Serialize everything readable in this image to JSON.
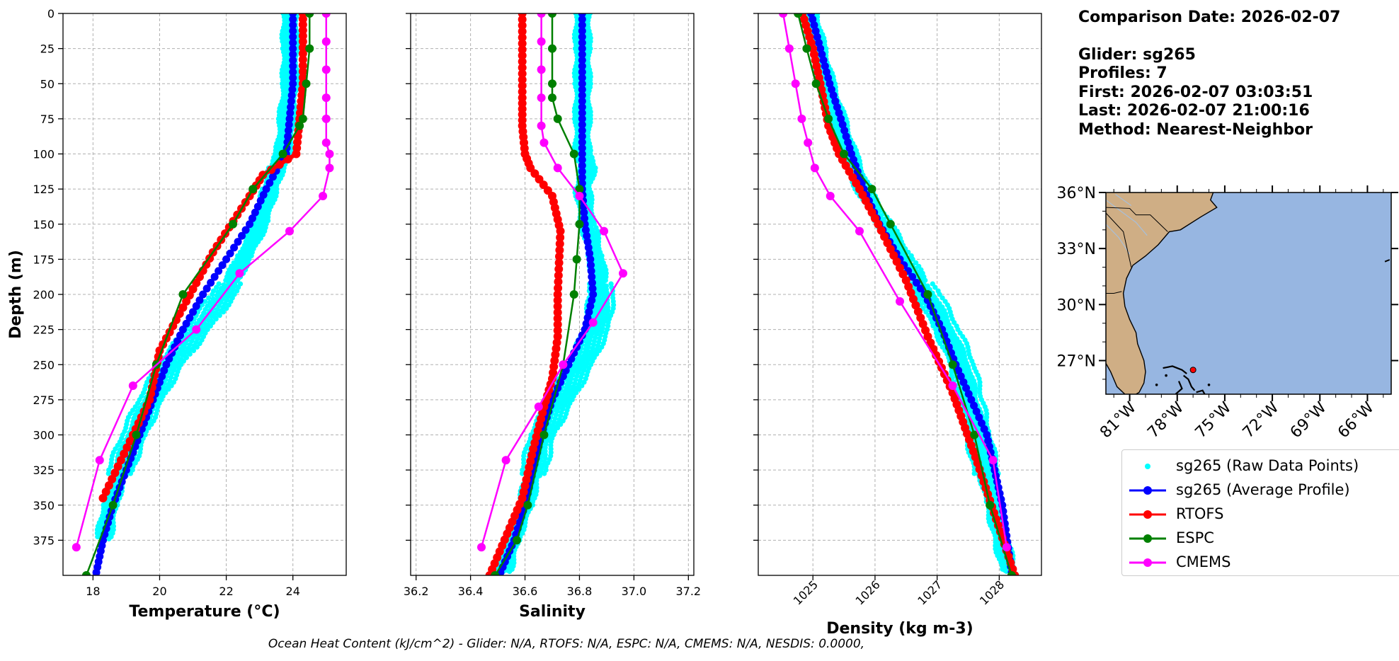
{
  "info": {
    "comparison_date": "Comparison Date: 2026-02-07",
    "glider": "Glider: sg265",
    "profiles": "Profiles: 7",
    "first": "First: 2026-02-07 03:03:51",
    "last": "Last: 2026-02-07 21:00:16",
    "method": "Method: Nearest-Neighbor"
  },
  "footer": "Ocean Heat Content (kJ/cm^2) - Glider: N/A,  RTOFS: N/A,  ESPC: N/A,  CMEMS: N/A,  NESDIS: 0.0000,",
  "legend": [
    {
      "label": "sg265 (Raw Data Points)",
      "color": "#00ffff",
      "style": "dots"
    },
    {
      "label": "sg265 (Average Profile)",
      "color": "#0000ff",
      "style": "line-marker"
    },
    {
      "label": "RTOFS",
      "color": "#ff0000",
      "style": "line-marker"
    },
    {
      "label": "ESPC",
      "color": "#008000",
      "style": "line-marker"
    },
    {
      "label": "CMEMS",
      "color": "#ff00ff",
      "style": "line-marker"
    }
  ],
  "map": {
    "lat_labels": [
      "36°N",
      "33°N",
      "30°N",
      "27°N"
    ],
    "lat_values": [
      36,
      33,
      30,
      27
    ],
    "lon_labels": [
      "81°W",
      "78°W",
      "75°W",
      "72°W",
      "69°W",
      "66°W"
    ],
    "lon_values": [
      -81,
      -78,
      -75,
      -72,
      -69,
      -66
    ],
    "extent": {
      "lon": [
        -82.5,
        -64.5
      ],
      "lat": [
        25.2,
        36.0
      ]
    },
    "ocean_color": "#97b6e1",
    "land_color": "#cfae85",
    "glider_position": {
      "lon": -77.0,
      "lat": 26.5
    }
  },
  "chart_data": [
    {
      "type": "line",
      "xlabel": "Temperature (°C)",
      "ylabel": "Depth (m)",
      "xlim": [
        17.1,
        25.6
      ],
      "ylim": [
        400,
        0
      ],
      "xticks": [
        18,
        20,
        22,
        24
      ],
      "yticks": [
        0,
        25,
        50,
        75,
        100,
        125,
        150,
        175,
        200,
        225,
        250,
        275,
        300,
        325,
        350,
        375
      ],
      "grid": true,
      "series": [
        {
          "name": "sg265 (Raw Data Points)",
          "color": "#00ffff",
          "x": [
            23.9,
            23.9,
            23.9,
            23.8,
            23.7,
            23.5,
            23.3,
            23.0,
            22.5,
            21.9,
            21.1,
            20.3,
            19.7,
            19.2,
            18.8,
            18.5,
            18.3
          ],
          "y": [
            0,
            25,
            50,
            75,
            100,
            110,
            125,
            150,
            175,
            200,
            225,
            250,
            275,
            300,
            325,
            350,
            375
          ]
        },
        {
          "name": "sg265 (Average Profile)",
          "color": "#0000ff",
          "x": [
            24.0,
            24.0,
            24.0,
            23.9,
            23.8,
            23.5,
            23.2,
            22.7,
            22.0,
            21.3,
            20.7,
            20.2,
            19.8,
            19.4,
            19.0,
            18.6,
            18.3,
            18.1
          ],
          "y": [
            0,
            25,
            50,
            75,
            100,
            112,
            125,
            150,
            175,
            200,
            225,
            250,
            275,
            300,
            325,
            350,
            375,
            398
          ]
        },
        {
          "name": "RTOFS",
          "color": "#ff0000",
          "x": [
            24.3,
            24.3,
            24.3,
            24.2,
            24.1,
            23.1,
            22.7,
            21.6,
            20.8,
            20.0,
            19.7,
            19.2,
            18.3
          ],
          "y": [
            0,
            20,
            50,
            75,
            100,
            115,
            130,
            170,
            205,
            240,
            275,
            300,
            345
          ]
        },
        {
          "name": "ESPC",
          "color": "#008000",
          "x": [
            24.5,
            24.5,
            24.4,
            24.3,
            24.2,
            23.7,
            22.8,
            22.2,
            20.7,
            19.9,
            19.3,
            18.6,
            17.8
          ],
          "y": [
            0,
            25,
            50,
            75,
            80,
            100,
            125,
            150,
            200,
            250,
            300,
            350,
            400
          ]
        },
        {
          "name": "CMEMS",
          "color": "#ff00ff",
          "x": [
            25.0,
            25.0,
            25.0,
            25.0,
            25.0,
            25.0,
            25.1,
            25.1,
            24.9,
            23.9,
            22.4,
            21.1,
            19.2,
            18.2,
            17.5
          ],
          "y": [
            0,
            20,
            40,
            60,
            75,
            92,
            100,
            110,
            130,
            155,
            185,
            225,
            265,
            318,
            380
          ]
        }
      ]
    },
    {
      "type": "line",
      "xlabel": "Salinity",
      "ylabel": "",
      "xlim": [
        36.18,
        37.22
      ],
      "ylim": [
        400,
        0
      ],
      "xticks": [
        36.2,
        36.4,
        36.6,
        36.8,
        37.0,
        37.2
      ],
      "xticklabels": [
        "36.2",
        "36.4",
        "36.6",
        "36.8",
        "37.0",
        "37.2"
      ],
      "grid": true,
      "series": [
        {
          "name": "sg265 (Raw Data Points)",
          "color": "#00ffff",
          "x": [
            36.81,
            36.81,
            36.81,
            36.81,
            36.81,
            36.83,
            36.81,
            36.83,
            36.86,
            36.88,
            36.86,
            36.8,
            36.73,
            36.66,
            36.63,
            36.6,
            36.55,
            36.52
          ],
          "y": [
            0,
            25,
            50,
            75,
            100,
            110,
            125,
            150,
            175,
            200,
            225,
            250,
            275,
            300,
            325,
            350,
            375,
            398
          ]
        },
        {
          "name": "sg265 (Average Profile)",
          "color": "#0000ff",
          "x": [
            36.81,
            36.81,
            36.81,
            36.81,
            36.81,
            36.81,
            36.82,
            36.84,
            36.85,
            36.82,
            36.76,
            36.7,
            36.66,
            36.63,
            36.6,
            36.56,
            36.51
          ],
          "y": [
            0,
            25,
            50,
            75,
            100,
            125,
            150,
            175,
            200,
            225,
            250,
            275,
            300,
            325,
            350,
            375,
            398
          ]
        },
        {
          "name": "RTOFS",
          "color": "#ff0000",
          "x": [
            36.59,
            36.59,
            36.59,
            36.59,
            36.6,
            36.62,
            36.7,
            36.73,
            36.72,
            36.72,
            36.7,
            36.67,
            36.63,
            36.59,
            36.47
          ],
          "y": [
            0,
            30,
            60,
            80,
            100,
            110,
            130,
            155,
            200,
            230,
            260,
            280,
            310,
            345,
            400
          ]
        },
        {
          "name": "ESPC",
          "color": "#008000",
          "x": [
            36.7,
            36.7,
            36.7,
            36.7,
            36.72,
            36.78,
            36.8,
            36.8,
            36.79,
            36.78,
            36.74,
            36.67,
            36.61,
            36.57,
            36.49
          ],
          "y": [
            0,
            25,
            50,
            60,
            75,
            100,
            125,
            150,
            175,
            200,
            250,
            300,
            350,
            375,
            400
          ]
        },
        {
          "name": "CMEMS",
          "color": "#ff00ff",
          "x": [
            36.66,
            36.66,
            36.66,
            36.66,
            36.66,
            36.67,
            36.72,
            36.8,
            36.89,
            36.96,
            36.85,
            36.74,
            36.65,
            36.53,
            36.44
          ],
          "y": [
            0,
            20,
            40,
            60,
            80,
            92,
            110,
            130,
            155,
            185,
            220,
            250,
            280,
            318,
            380
          ]
        }
      ]
    },
    {
      "type": "line",
      "xlabel": "Density (kg m-3)",
      "ylabel": "",
      "xlim": [
        1024.12,
        1028.68
      ],
      "ylim": [
        400,
        0
      ],
      "xticks": [
        1025,
        1026,
        1027,
        1028
      ],
      "grid": true,
      "series": [
        {
          "name": "sg265 (Raw Data Points)",
          "color": "#00ffff",
          "x": [
            1024.95,
            1025.08,
            1025.22,
            1025.4,
            1025.58,
            1025.8,
            1026.15,
            1026.5,
            1026.85,
            1027.15,
            1027.4,
            1027.65,
            1027.9,
            1028.15
          ],
          "y": [
            0,
            25,
            50,
            75,
            100,
            125,
            150,
            175,
            200,
            225,
            250,
            300,
            350,
            398
          ]
        },
        {
          "name": "sg265 (Average Profile)",
          "color": "#0000ff",
          "x": [
            1024.97,
            1025.12,
            1025.27,
            1025.45,
            1025.62,
            1025.82,
            1026.07,
            1026.4,
            1026.8,
            1027.08,
            1027.3,
            1027.55,
            1027.8,
            1028.05,
            1028.2
          ],
          "y": [
            0,
            25,
            50,
            75,
            100,
            125,
            150,
            175,
            200,
            225,
            250,
            275,
            300,
            350,
            398
          ]
        },
        {
          "name": "RTOFS",
          "color": "#ff0000",
          "x": [
            1024.83,
            1025.0,
            1025.12,
            1025.25,
            1025.42,
            1025.75,
            1026.05,
            1026.5,
            1026.85,
            1027.25,
            1027.65,
            1028.25
          ],
          "y": [
            0,
            25,
            50,
            80,
            100,
            125,
            150,
            190,
            230,
            270,
            320,
            400
          ]
        },
        {
          "name": "ESPC",
          "color": "#008000",
          "x": [
            1024.76,
            1024.9,
            1025.05,
            1025.25,
            1025.5,
            1025.95,
            1026.25,
            1026.85,
            1027.25,
            1027.6,
            1027.85,
            1028.2
          ],
          "y": [
            0,
            25,
            50,
            75,
            100,
            125,
            150,
            200,
            250,
            300,
            350,
            400
          ]
        },
        {
          "name": "CMEMS",
          "color": "#ff00ff",
          "x": [
            1024.52,
            1024.62,
            1024.72,
            1024.82,
            1024.92,
            1025.03,
            1025.28,
            1025.75,
            1026.4,
            1027.25,
            1027.9,
            1028.12
          ],
          "y": [
            0,
            25,
            50,
            75,
            92,
            110,
            130,
            155,
            205,
            265,
            318,
            380
          ]
        }
      ]
    }
  ]
}
